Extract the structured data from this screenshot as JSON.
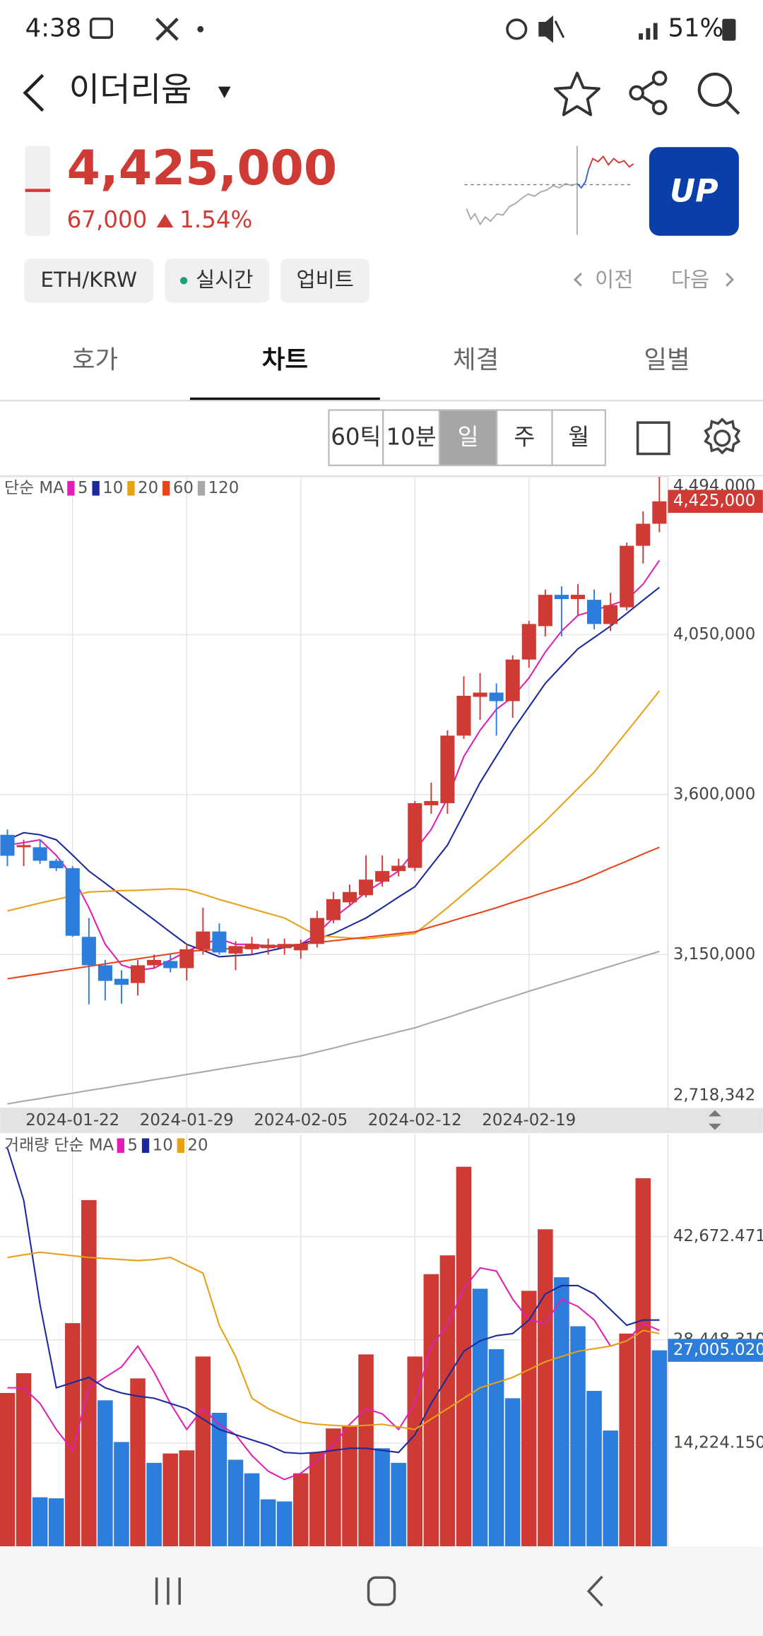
{
  "status_bar": {
    "time": "4:38",
    "battery": "51%"
  },
  "header": {
    "title": "이더리움"
  },
  "price": {
    "value": "4,425,000",
    "change": "67,000",
    "change_pct": "1.54%"
  },
  "logo": "UP",
  "tags": [
    "ETH/KRW",
    "실시간",
    "업비트"
  ],
  "nav": {
    "prev": "이전",
    "next": "다음"
  },
  "tabs": [
    "호가",
    "차트",
    "체결",
    "일별"
  ],
  "active_tab": 1,
  "periods": [
    "60틱",
    "10분",
    "일",
    "주",
    "월"
  ],
  "active_period": 2,
  "chart_data": [
    {
      "type": "candlestick",
      "legend_title": "단순 MA",
      "categories": [
        null,
        null,
        null,
        null,
        "2024-01-22",
        null,
        null,
        null,
        null,
        null,
        null,
        "2024-01-29",
        null,
        null,
        null,
        null,
        null,
        null,
        "2024-02-05",
        null,
        null,
        null,
        null,
        null,
        null,
        "2024-02-12",
        null,
        null,
        null,
        null,
        null,
        null,
        "2024-02-19",
        null,
        null,
        null,
        null,
        null,
        null,
        null,
        null
      ],
      "open": [
        3487000,
        3452000,
        3452000,
        3414000,
        3393000,
        3200000,
        3120000,
        3082000,
        3070000,
        3120000,
        3132000,
        3112000,
        3165000,
        3215000,
        3153000,
        3165000,
        3168000,
        3168000,
        3162000,
        3180000,
        3247000,
        3297000,
        3317000,
        3355000,
        3385000,
        3394000,
        3570000,
        3576000,
        3766000,
        3875000,
        3887000,
        3863000,
        3980000,
        4074000,
        4162000,
        4150000,
        4148000,
        4080000,
        4127000,
        4300000,
        4362000
      ],
      "high": [
        3502000,
        3473000,
        3473000,
        3420000,
        3399000,
        3253000,
        3135000,
        3106000,
        3135000,
        3150000,
        3150000,
        3180000,
        3282000,
        3238000,
        3188000,
        3200000,
        3195000,
        3195000,
        3192000,
        3273000,
        3326000,
        3347000,
        3429000,
        3429000,
        3420000,
        3582000,
        3634000,
        3781000,
        3933000,
        3942000,
        3913000,
        3992000,
        4089000,
        4177000,
        4186000,
        4192000,
        4177000,
        4168000,
        4309000,
        4397000,
        4494000
      ],
      "low": [
        3399000,
        3399000,
        3405000,
        3385000,
        3200000,
        3010000,
        3021000,
        3012000,
        3035000,
        3110000,
        3100000,
        3077000,
        3150000,
        3150000,
        3106000,
        3150000,
        3150000,
        3150000,
        3138000,
        3170000,
        3238000,
        3288000,
        3311000,
        3341000,
        3370000,
        3385000,
        3546000,
        3546000,
        3757000,
        3810000,
        3766000,
        3816000,
        3957000,
        4045000,
        4045000,
        4104000,
        4065000,
        4060000,
        4118000,
        4250000,
        4338000
      ],
      "close": [
        3428000,
        3458000,
        3414000,
        3393000,
        3203000,
        3120000,
        3076000,
        3065000,
        3120000,
        3135000,
        3112000,
        3165000,
        3215000,
        3156000,
        3174000,
        3180000,
        3178000,
        3180000,
        3180000,
        3253000,
        3306000,
        3326000,
        3361000,
        3385000,
        3400000,
        3576000,
        3582000,
        3766000,
        3878000,
        3887000,
        3863000,
        3980000,
        4080000,
        4162000,
        4150000,
        4162000,
        4080000,
        4133000,
        4300000,
        4362000,
        4425000
      ],
      "up_color": "#d03a35",
      "down_color": "#2c7ddc",
      "series": [
        {
          "name": "5",
          "color": "#e01fb8",
          "values": [
            3458000,
            3465000,
            3473000,
            3429000,
            3370000,
            3282000,
            3179000,
            3121000,
            3106000,
            3112000,
            3135000,
            3159000,
            3179000,
            3194000,
            3179000,
            3179000,
            3174000,
            3171000,
            3179000,
            3209000,
            3253000,
            3288000,
            3326000,
            3355000,
            3385000,
            3443000,
            3502000,
            3590000,
            3707000,
            3781000,
            3840000,
            3875000,
            3928000,
            4001000,
            4060000,
            4104000,
            4118000,
            4133000,
            4148000,
            4192000,
            4259000
          ]
        },
        {
          "name": "10",
          "color": "#1a2a9c",
          "values": [
            3473000,
            3493000,
            3487000,
            3473000,
            3430000,
            3385000,
            3351000,
            3316000,
            3282000,
            3248000,
            3213000,
            3179000,
            3162000,
            3144000,
            3147000,
            3150000,
            3160000,
            3170000,
            3179000,
            3194000,
            3209000,
            3231000,
            3253000,
            3282000,
            3312000,
            3341000,
            3400000,
            3458000,
            3546000,
            3634000,
            3708000,
            3781000,
            3847000,
            3913000,
            3962000,
            4010000,
            4042000,
            4074000,
            4110000,
            4147000,
            4183000
          ]
        },
        {
          "name": "20",
          "color": "#e8a016",
          "values": [
            3273000,
            3284000,
            3295000,
            3305000,
            3316000,
            3326000,
            3328000,
            3330000,
            3331000,
            3333000,
            3335000,
            3333000,
            3320000,
            3305000,
            3292000,
            3279000,
            3266000,
            3253000,
            3228000,
            3203000,
            3200000,
            3197000,
            3194000,
            3199000,
            3204000,
            3209000,
            3245000,
            3282000,
            3321000,
            3360000,
            3399000,
            3441000,
            3483000,
            3525000,
            3571000,
            3617000,
            3663000,
            3720000,
            3777000,
            3834000,
            3892000
          ]
        },
        {
          "name": "60",
          "color": "#e8441a",
          "values": [
            3082000,
            3089000,
            3096000,
            3103000,
            3110000,
            3117000,
            3124000,
            3131000,
            3138000,
            3145000,
            3152000,
            3159000,
            3162000,
            3165000,
            3168000,
            3171000,
            3173000,
            3176000,
            3179000,
            3184000,
            3189000,
            3194000,
            3199000,
            3204000,
            3209000,
            3214000,
            3228000,
            3241000,
            3255000,
            3268000,
            3282000,
            3297000,
            3311000,
            3326000,
            3340000,
            3355000,
            3374000,
            3394000,
            3413000,
            3433000,
            3452000
          ]
        },
        {
          "name": "120",
          "color": "#a8a8a8",
          "values": [
            2730000,
            2738000,
            2745000,
            2753000,
            2760000,
            2768000,
            2775000,
            2783000,
            2790000,
            2798000,
            2805000,
            2813000,
            2820000,
            2828000,
            2835000,
            2843000,
            2850000,
            2858000,
            2865000,
            2876000,
            2887000,
            2899000,
            2910000,
            2921000,
            2933000,
            2944000,
            2959000,
            2973000,
            2988000,
            3003000,
            3018000,
            3032000,
            3047000,
            3061000,
            3075000,
            3089000,
            3103000,
            3117000,
            3131000,
            3145000,
            3159000
          ]
        }
      ],
      "ylim": [
        2718342,
        4494000
      ],
      "yticks": [
        {
          "value": 2718342,
          "label": "2,718,342"
        },
        {
          "value": 3150000,
          "label": "3,150,000"
        },
        {
          "value": 3600000,
          "label": "3,600,000"
        },
        {
          "value": 4050000,
          "label": "4,050,000"
        },
        {
          "value": 4494000,
          "label": "4,494,000"
        }
      ],
      "last_value_label": "4,425,000",
      "grid": true
    },
    {
      "type": "bar",
      "legend_title": "거래량 단순 MA",
      "values": [
        21124,
        23854,
        6754,
        6610,
        30752,
        47708,
        20118,
        14370,
        23136,
        11496,
        12789,
        13220,
        26153,
        18394,
        11927,
        10059,
        6467,
        6179,
        10059,
        12933,
        16238,
        16669,
        26441,
        13508,
        11496,
        26153,
        37506,
        40092,
        52307,
        35494,
        27159,
        20405,
        35207,
        43685,
        37075,
        30321,
        21411,
        15951,
        29315,
        50726,
        27005.02
      ],
      "colors": [
        "#d03a35",
        "#d03a35",
        "#2c7ddc",
        "#2c7ddc",
        "#d03a35",
        "#d03a35",
        "#2c7ddc",
        "#2c7ddc",
        "#d03a35",
        "#2c7ddc",
        "#d03a35",
        "#d03a35",
        "#d03a35",
        "#2c7ddc",
        "#2c7ddc",
        "#2c7ddc",
        "#2c7ddc",
        "#2c7ddc",
        "#d03a35",
        "#d03a35",
        "#d03a35",
        "#d03a35",
        "#d03a35",
        "#2c7ddc",
        "#2c7ddc",
        "#d03a35",
        "#d03a35",
        "#d03a35",
        "#d03a35",
        "#2c7ddc",
        "#2c7ddc",
        "#2c7ddc",
        "#d03a35",
        "#d03a35",
        "#2c7ddc",
        "#2c7ddc",
        "#2c7ddc",
        "#2c7ddc",
        "#d03a35",
        "#d03a35",
        "#2c7ddc"
      ],
      "series": [
        {
          "name": "5",
          "color": "#e01fb8",
          "values": [
            21842,
            21842,
            19687,
            16094,
            13220,
            21842,
            23279,
            24716,
            27590,
            23998,
            19687,
            16094,
            18968,
            16813,
            15376,
            12502,
            10346,
            9197,
            10059,
            11783,
            13939,
            16813,
            18968,
            18250,
            16094,
            19687,
            27590,
            30464,
            35494,
            38367,
            37936,
            34057,
            31183,
            30752,
            34057,
            33051,
            31183,
            27590,
            28309,
            30752,
            29746
          ]
        },
        {
          "name": "10",
          "color": "#1a2a9c",
          "values": [
            54893,
            47708,
            33338,
            21842,
            22561,
            23279,
            21842,
            21124,
            20693,
            20405,
            19687,
            18968,
            17531,
            16094,
            15376,
            14657,
            13939,
            12933,
            12789,
            12933,
            13220,
            13508,
            13508,
            13220,
            12933,
            15376,
            19687,
            23279,
            26872,
            28309,
            29027,
            29315,
            31183,
            34775,
            35925,
            35925,
            34775,
            32620,
            30464,
            31183,
            31183
          ]
        },
        {
          "name": "20",
          "color": "#e8a016",
          "values": [
            39805,
            40164,
            40523,
            40283,
            40044,
            39805,
            39661,
            39518,
            39374,
            39518,
            39805,
            38727,
            37649,
            30464,
            26153,
            20405,
            18968,
            17963,
            17100,
            16813,
            16669,
            16525,
            16669,
            16813,
            16454,
            16094,
            17531,
            18968,
            20405,
            21842,
            22561,
            23279,
            24357,
            25435,
            26154,
            26872,
            27231,
            27590,
            28309,
            29746,
            29315
          ]
        }
      ],
      "ylim": [
        0,
        56800
      ],
      "yticks": [
        {
          "value": 14224.15,
          "label": "14,224.150"
        },
        {
          "value": 28448.31,
          "label": "28,448.310"
        },
        {
          "value": 42672.471,
          "label": "42,672.471"
        }
      ],
      "last_value_label": "27,005.020",
      "grid": true
    }
  ]
}
